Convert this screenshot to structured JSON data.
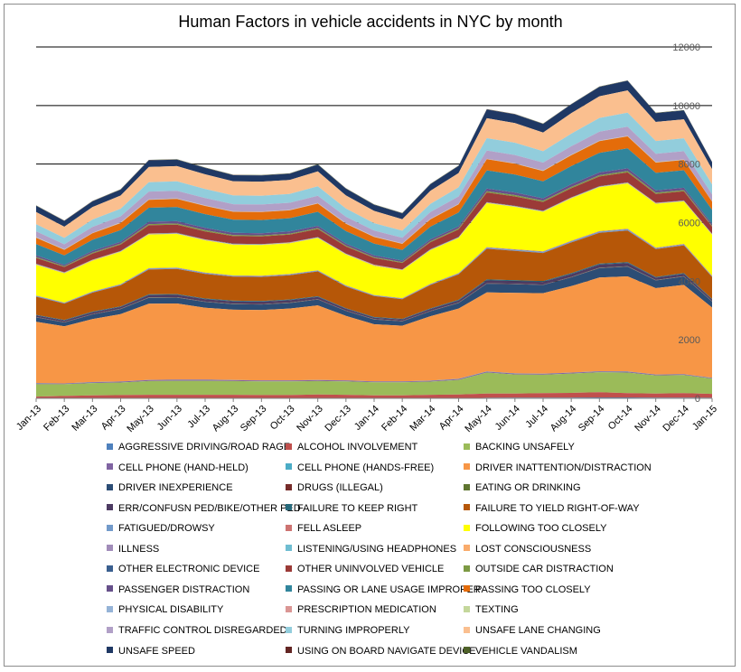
{
  "chart_data": {
    "type": "area",
    "stacked": true,
    "title": "Human Factors in vehicle accidents in NYC by month",
    "xlabel": "",
    "ylabel": "",
    "ylim": [
      0,
      12000
    ],
    "yticks": [
      "0",
      "2000",
      "4000",
      "6000",
      "8000",
      "10000",
      "12000"
    ],
    "grid": true,
    "legend_position": "bottom",
    "categories": [
      "Jan-13",
      "Feb-13",
      "Mar-13",
      "Apr-13",
      "May-13",
      "Jun-13",
      "Jul-13",
      "Aug-13",
      "Sep-13",
      "Oct-13",
      "Nov-13",
      "Dec-13",
      "Jan-14",
      "Feb-14",
      "Mar-14",
      "Apr-14",
      "May-14",
      "Jun-14",
      "Jul-14",
      "Aug-14",
      "Sep-14",
      "Oct-14",
      "Nov-14",
      "Dec-14",
      "Jan-15"
    ],
    "series": [
      {
        "name": "AGGRESSIVE DRIVING/ROAD RAGE",
        "color": "#4f81bd",
        "values": [
          0,
          0,
          0,
          0,
          0,
          0,
          0,
          0,
          0,
          0,
          0,
          0,
          0,
          0,
          0,
          0,
          20,
          25,
          25,
          25,
          30,
          30,
          25,
          25,
          20
        ]
      },
      {
        "name": "ALCOHOL INVOLVEMENT",
        "color": "#c0504d",
        "values": [
          60,
          80,
          100,
          110,
          120,
          120,
          120,
          120,
          110,
          110,
          130,
          120,
          100,
          100,
          120,
          130,
          140,
          140,
          150,
          160,
          180,
          150,
          140,
          150,
          130
        ]
      },
      {
        "name": "BACKING UNSAFELY",
        "color": "#9bbb59",
        "values": [
          420,
          400,
          420,
          430,
          470,
          480,
          480,
          470,
          470,
          470,
          460,
          460,
          450,
          450,
          450,
          500,
          720,
          650,
          630,
          660,
          680,
          700,
          620,
          620,
          520
        ]
      },
      {
        "name": "CELL PHONE (HAND-HELD)",
        "color": "#8064a2",
        "values": [
          30,
          25,
          30,
          30,
          35,
          35,
          35,
          30,
          30,
          30,
          30,
          30,
          25,
          25,
          30,
          30,
          30,
          30,
          30,
          30,
          30,
          30,
          25,
          25,
          25
        ]
      },
      {
        "name": "CELL PHONE (HANDS-FREE)",
        "color": "#4bacc6",
        "values": [
          5,
          5,
          5,
          5,
          5,
          5,
          5,
          5,
          5,
          5,
          5,
          5,
          5,
          5,
          5,
          5,
          5,
          5,
          5,
          5,
          5,
          5,
          5,
          5,
          5
        ]
      },
      {
        "name": "DRIVER INATTENTION/DISTRACTION",
        "color": "#f79646",
        "values": [
          2100,
          1950,
          2150,
          2300,
          2600,
          2600,
          2450,
          2400,
          2400,
          2450,
          2550,
          2200,
          1950,
          1900,
          2200,
          2400,
          2700,
          2750,
          2750,
          2950,
          3200,
          3250,
          2950,
          3050,
          2400
        ]
      },
      {
        "name": "DRIVER INEXPERIENCE",
        "color": "#2c4d75",
        "values": [
          150,
          130,
          160,
          170,
          200,
          200,
          200,
          190,
          190,
          190,
          200,
          170,
          160,
          150,
          170,
          190,
          300,
          300,
          280,
          300,
          320,
          330,
          260,
          280,
          200
        ]
      },
      {
        "name": "DRUGS (ILLEGAL)",
        "color": "#772c2a",
        "values": [
          10,
          10,
          10,
          10,
          10,
          10,
          10,
          10,
          10,
          10,
          10,
          10,
          10,
          10,
          10,
          10,
          10,
          10,
          10,
          10,
          10,
          10,
          10,
          10,
          10
        ]
      },
      {
        "name": "EATING OR DRINKING",
        "color": "#5f7530",
        "values": [
          5,
          5,
          5,
          5,
          5,
          5,
          5,
          5,
          5,
          5,
          5,
          5,
          5,
          5,
          5,
          5,
          5,
          5,
          5,
          5,
          5,
          5,
          5,
          5,
          5
        ]
      },
      {
        "name": "ERR/CONFUSN  PED/BIKE/OTHER PED",
        "color": "#4d3b62",
        "values": [
          50,
          50,
          60,
          60,
          80,
          80,
          80,
          80,
          80,
          80,
          70,
          60,
          50,
          50,
          60,
          70,
          100,
          90,
          90,
          100,
          110,
          110,
          80,
          80,
          60
        ]
      },
      {
        "name": "FAILURE TO KEEP RIGHT",
        "color": "#276a7c",
        "values": [
          20,
          20,
          20,
          20,
          25,
          25,
          25,
          25,
          25,
          25,
          25,
          20,
          20,
          20,
          20,
          25,
          30,
          30,
          30,
          30,
          30,
          30,
          25,
          25,
          20
        ]
      },
      {
        "name": "FAILURE TO YIELD RIGHT-OF-WAY",
        "color": "#b65708",
        "values": [
          620,
          560,
          650,
          720,
          850,
          860,
          840,
          820,
          820,
          830,
          850,
          740,
          720,
          670,
          800,
          870,
          1050,
          1000,
          960,
          1050,
          1050,
          1080,
          950,
          950,
          750
        ]
      },
      {
        "name": "FATIGUED/DROWSY",
        "color": "#729aca",
        "values": [
          30,
          25,
          30,
          30,
          35,
          35,
          35,
          30,
          30,
          30,
          30,
          30,
          25,
          25,
          30,
          30,
          40,
          40,
          40,
          40,
          45,
          45,
          35,
          35,
          30
        ]
      },
      {
        "name": "FELL ASLEEP",
        "color": "#cd7371",
        "values": [
          10,
          10,
          10,
          10,
          10,
          10,
          10,
          10,
          10,
          10,
          10,
          10,
          10,
          10,
          10,
          10,
          15,
          15,
          15,
          15,
          15,
          15,
          15,
          15,
          10
        ]
      },
      {
        "name": "FOLLOWING TOO CLOSELY",
        "color": "#ffff00",
        "values": [
          1050,
          1000,
          1050,
          1100,
          1150,
          1150,
          1100,
          1050,
          1050,
          1050,
          1100,
          1050,
          1000,
          950,
          1150,
          1200,
          1500,
          1450,
          1350,
          1450,
          1500,
          1550,
          1500,
          1450,
          1400
        ]
      },
      {
        "name": "ILLNESS",
        "color": "#a18cb9",
        "values": [
          10,
          10,
          10,
          10,
          10,
          10,
          10,
          10,
          10,
          10,
          10,
          10,
          10,
          10,
          10,
          10,
          10,
          10,
          10,
          10,
          10,
          10,
          10,
          10,
          10
        ]
      },
      {
        "name": "LISTENING/USING HEADPHONES",
        "color": "#6fbdd1",
        "values": [
          5,
          5,
          5,
          5,
          5,
          5,
          5,
          5,
          5,
          5,
          5,
          5,
          5,
          5,
          5,
          5,
          5,
          5,
          5,
          5,
          5,
          5,
          5,
          5,
          5
        ]
      },
      {
        "name": "LOST CONSCIOUSNESS",
        "color": "#f9ab6b",
        "values": [
          10,
          10,
          10,
          10,
          10,
          10,
          10,
          10,
          10,
          10,
          10,
          10,
          10,
          10,
          10,
          10,
          10,
          10,
          10,
          10,
          10,
          10,
          10,
          10,
          10
        ]
      },
      {
        "name": "OTHER ELECTRONIC DEVICE",
        "color": "#3a5f8f",
        "values": [
          10,
          10,
          10,
          10,
          10,
          10,
          10,
          10,
          10,
          10,
          10,
          10,
          10,
          10,
          10,
          10,
          10,
          10,
          10,
          10,
          10,
          10,
          10,
          10,
          10
        ]
      },
      {
        "name": "OTHER UNINVOLVED VEHICLE",
        "color": "#9b3a37",
        "values": [
          200,
          180,
          210,
          220,
          280,
          280,
          270,
          260,
          260,
          260,
          270,
          240,
          230,
          220,
          240,
          260,
          330,
          320,
          300,
          310,
          330,
          340,
          300,
          310,
          240
        ]
      },
      {
        "name": "OUTSIDE CAR DISTRACTION",
        "color": "#7d9a44",
        "values": [
          30,
          25,
          30,
          30,
          40,
          40,
          40,
          35,
          35,
          35,
          35,
          30,
          25,
          25,
          30,
          35,
          45,
          45,
          40,
          45,
          45,
          45,
          40,
          40,
          30
        ]
      },
      {
        "name": "PASSENGER DISTRACTION",
        "color": "#66508a",
        "values": [
          60,
          50,
          60,
          60,
          80,
          80,
          80,
          75,
          75,
          75,
          75,
          65,
          60,
          55,
          65,
          70,
          90,
          90,
          85,
          90,
          95,
          95,
          80,
          80,
          65
        ]
      },
      {
        "name": "PASSING OR LANE USAGE IMPROPER",
        "color": "#31859c",
        "values": [
          380,
          320,
          380,
          400,
          480,
          480,
          470,
          450,
          450,
          450,
          480,
          430,
          400,
          360,
          430,
          470,
          620,
          610,
          580,
          620,
          670,
          680,
          600,
          600,
          480
        ]
      },
      {
        "name": "PASSING TOO CLOSELY",
        "color": "#e46c0a",
        "values": [
          220,
          190,
          220,
          240,
          270,
          280,
          280,
          270,
          270,
          270,
          280,
          250,
          230,
          210,
          250,
          280,
          380,
          370,
          350,
          370,
          400,
          410,
          350,
          350,
          280
        ]
      },
      {
        "name": "PHYSICAL DISABILITY",
        "color": "#95b3d7",
        "values": [
          10,
          10,
          10,
          10,
          10,
          10,
          10,
          10,
          10,
          10,
          10,
          10,
          10,
          10,
          10,
          10,
          10,
          10,
          10,
          10,
          10,
          10,
          10,
          10,
          10
        ]
      },
      {
        "name": "PRESCRIPTION MEDICATION",
        "color": "#da9694",
        "values": [
          5,
          5,
          5,
          5,
          5,
          5,
          5,
          5,
          5,
          5,
          5,
          5,
          5,
          5,
          5,
          5,
          5,
          5,
          5,
          5,
          5,
          5,
          5,
          5,
          5
        ]
      },
      {
        "name": "TEXTING",
        "color": "#c4d79b",
        "values": [
          5,
          5,
          5,
          5,
          5,
          5,
          5,
          5,
          5,
          5,
          5,
          5,
          5,
          5,
          5,
          5,
          5,
          5,
          5,
          5,
          5,
          5,
          5,
          5,
          5
        ]
      },
      {
        "name": "TRAFFIC CONTROL DISREGARDED",
        "color": "#b1a0c7",
        "values": [
          200,
          170,
          200,
          210,
          260,
          260,
          250,
          240,
          240,
          240,
          250,
          220,
          200,
          190,
          230,
          250,
          280,
          280,
          270,
          290,
          300,
          310,
          280,
          280,
          230
        ]
      },
      {
        "name": "TURNING IMPROPERLY",
        "color": "#92cddc",
        "values": [
          240,
          220,
          250,
          260,
          320,
          320,
          310,
          300,
          300,
          300,
          320,
          280,
          250,
          240,
          280,
          310,
          420,
          420,
          390,
          430,
          470,
          480,
          440,
          440,
          340
        ]
      },
      {
        "name": "UNSAFE LANE CHANGING",
        "color": "#fabf8f",
        "values": [
          420,
          380,
          430,
          450,
          520,
          520,
          500,
          480,
          480,
          480,
          510,
          450,
          420,
          390,
          450,
          490,
          680,
          670,
          640,
          700,
          740,
          760,
          650,
          650,
          520
        ]
      },
      {
        "name": "UNSAFE SPEED",
        "color": "#1f3864",
        "values": [
          210,
          200,
          190,
          200,
          230,
          220,
          220,
          210,
          210,
          210,
          230,
          230,
          210,
          200,
          220,
          240,
          300,
          300,
          290,
          300,
          320,
          330,
          300,
          300,
          240
        ]
      },
      {
        "name": "USING ON BOARD NAVIGATE DEVICE",
        "color": "#632523",
        "values": [
          5,
          5,
          5,
          5,
          5,
          5,
          5,
          5,
          5,
          5,
          5,
          5,
          5,
          5,
          5,
          5,
          5,
          5,
          5,
          5,
          5,
          5,
          5,
          5,
          5
        ]
      },
      {
        "name": "VEHICLE VANDALISM",
        "color": "#4f6228",
        "values": [
          10,
          10,
          10,
          10,
          10,
          10,
          10,
          10,
          10,
          10,
          10,
          10,
          10,
          10,
          10,
          10,
          10,
          10,
          10,
          10,
          10,
          10,
          10,
          10,
          10
        ]
      }
    ]
  }
}
